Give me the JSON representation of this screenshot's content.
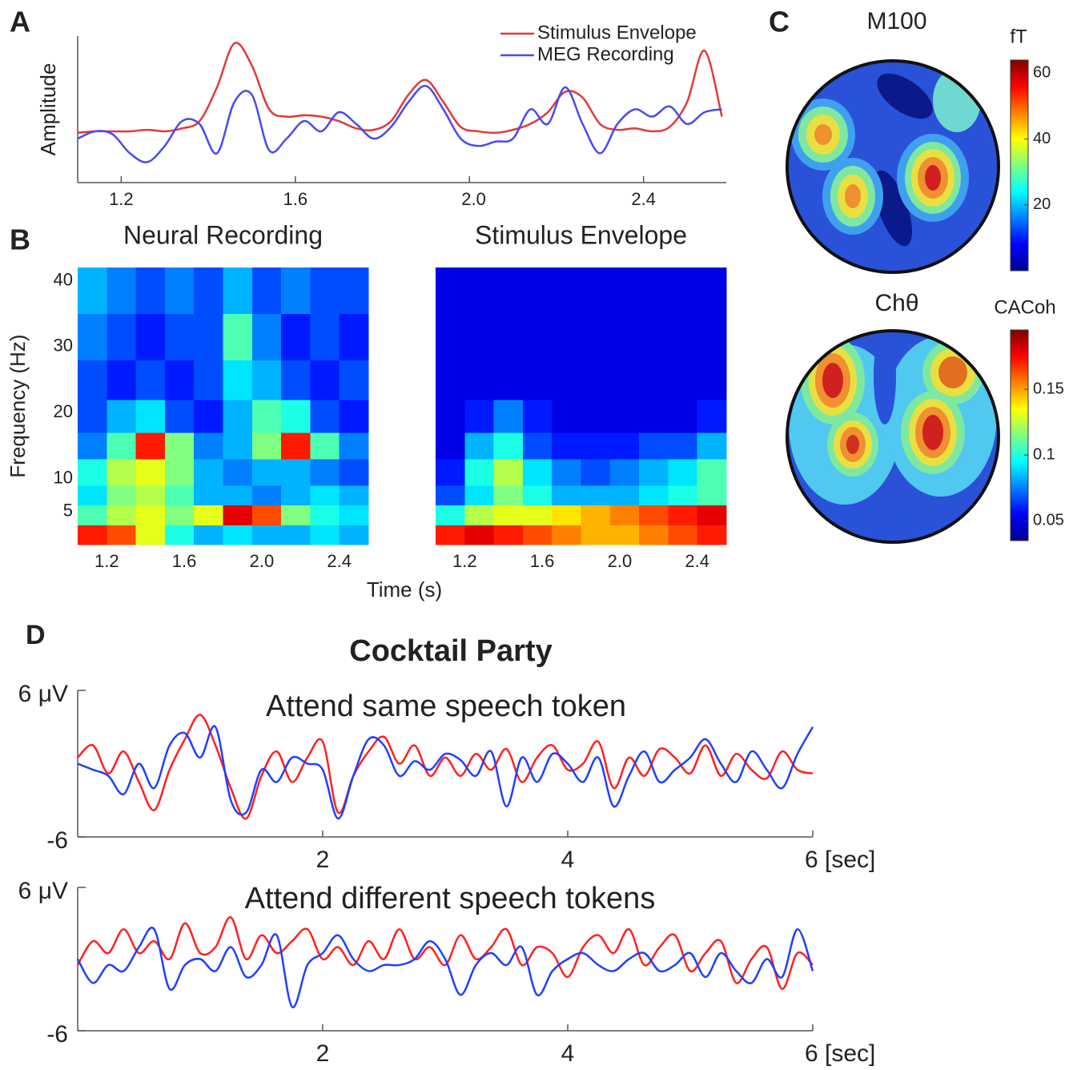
{
  "figure": {
    "panel_labels": [
      "A",
      "B",
      "C",
      "D"
    ],
    "suptitle": "Cocktail Party"
  },
  "chart_data": [
    {
      "type": "line",
      "ylabel": "Amplitude",
      "legend": "upper right",
      "xlim": [
        1.1,
        2.59
      ],
      "ylim": [
        0,
        1
      ],
      "xticks": [
        1.2,
        1.6,
        {
          "value": 2,
          "label": "2.0"
        },
        2.4
      ],
      "x": [
        1.1,
        1.14,
        1.18,
        1.22,
        1.26,
        1.3,
        1.34,
        1.38,
        1.42,
        1.46,
        1.5,
        1.54,
        1.58,
        1.62,
        1.66,
        1.7,
        1.74,
        1.78,
        1.82,
        1.86,
        1.9,
        1.94,
        1.98,
        2.02,
        2.06,
        2.1,
        2.14,
        2.18,
        2.22,
        2.26,
        2.3,
        2.34,
        2.38,
        2.42,
        2.46,
        2.5,
        2.54,
        2.58
      ],
      "series": [
        {
          "name": "Stimulus Envelope",
          "color": "#e03a3a",
          "values": [
            0.34,
            0.35,
            0.35,
            0.35,
            0.36,
            0.35,
            0.37,
            0.42,
            0.65,
            0.95,
            0.8,
            0.5,
            0.45,
            0.46,
            0.45,
            0.42,
            0.37,
            0.36,
            0.42,
            0.6,
            0.7,
            0.55,
            0.38,
            0.35,
            0.34,
            0.36,
            0.4,
            0.48,
            0.62,
            0.58,
            0.4,
            0.36,
            0.37,
            0.35,
            0.38,
            0.55,
            0.9,
            0.45
          ]
        },
        {
          "name": "MEG Recording",
          "color": "#4a4af0",
          "values": [
            0.3,
            0.35,
            0.33,
            0.2,
            0.14,
            0.25,
            0.42,
            0.4,
            0.2,
            0.55,
            0.6,
            0.22,
            0.3,
            0.42,
            0.35,
            0.48,
            0.4,
            0.3,
            0.38,
            0.55,
            0.66,
            0.5,
            0.3,
            0.25,
            0.28,
            0.3,
            0.5,
            0.4,
            0.65,
            0.4,
            0.2,
            0.4,
            0.5,
            0.45,
            0.52,
            0.4,
            0.48,
            0.5
          ]
        }
      ]
    },
    {
      "type": "heatmap",
      "title": "Neural Recording",
      "title_color": "#3a3af0",
      "xlabel": "Time (s)",
      "ylabel": "Frequency (Hz)",
      "colormap": "jet",
      "xlim": [
        1.05,
        2.55
      ],
      "ylim": [
        0,
        42
      ],
      "zlim": [
        0,
        1
      ],
      "xticks": [
        1.2,
        1.6,
        {
          "value": 2,
          "label": "2.0"
        },
        2.4
      ],
      "yticks": [
        5,
        10,
        20,
        30,
        40
      ],
      "x": [
        1.05,
        1.2,
        1.35,
        1.5,
        1.65,
        1.8,
        1.95,
        2.1,
        2.25,
        2.4,
        2.55
      ],
      "y": [
        0,
        3,
        6,
        9,
        13,
        17,
        22,
        28,
        35,
        42
      ],
      "z": [
        [
          0.85,
          0.8,
          0.6,
          0.4,
          0.3,
          0.35,
          0.3,
          0.3,
          0.35,
          0.3
        ],
        [
          0.45,
          0.55,
          0.6,
          0.5,
          0.6,
          0.9,
          0.8,
          0.5,
          0.4,
          0.35
        ],
        [
          0.35,
          0.5,
          0.55,
          0.45,
          0.3,
          0.3,
          0.25,
          0.3,
          0.35,
          0.3
        ],
        [
          0.4,
          0.55,
          0.6,
          0.5,
          0.3,
          0.25,
          0.3,
          0.3,
          0.25,
          0.2
        ],
        [
          0.25,
          0.45,
          0.85,
          0.5,
          0.25,
          0.3,
          0.5,
          0.85,
          0.45,
          0.25
        ],
        [
          0.2,
          0.3,
          0.35,
          0.2,
          0.15,
          0.3,
          0.45,
          0.4,
          0.2,
          0.15
        ],
        [
          0.2,
          0.15,
          0.2,
          0.15,
          0.2,
          0.35,
          0.3,
          0.2,
          0.15,
          0.2
        ],
        [
          0.25,
          0.2,
          0.15,
          0.2,
          0.2,
          0.45,
          0.25,
          0.15,
          0.2,
          0.15
        ],
        [
          0.3,
          0.25,
          0.2,
          0.25,
          0.2,
          0.3,
          0.2,
          0.25,
          0.2,
          0.2
        ]
      ]
    },
    {
      "type": "heatmap",
      "title": "Stimulus Envelope",
      "title_color": "#e03a3a",
      "colormap": "jet",
      "xlim": [
        1.05,
        2.55
      ],
      "ylim": [
        0,
        42
      ],
      "zlim": [
        0,
        1
      ],
      "xticks": [
        1.2,
        1.6,
        {
          "value": 2,
          "label": "2.0"
        },
        2.4
      ],
      "x": [
        1.05,
        1.2,
        1.35,
        1.5,
        1.65,
        1.8,
        1.95,
        2.1,
        2.25,
        2.4,
        2.55
      ],
      "y": [
        0,
        3,
        6,
        9,
        13,
        17,
        22,
        28,
        35,
        42
      ],
      "z": [
        [
          0.85,
          0.9,
          0.85,
          0.8,
          0.75,
          0.7,
          0.7,
          0.75,
          0.8,
          0.85
        ],
        [
          0.4,
          0.55,
          0.6,
          0.6,
          0.65,
          0.7,
          0.75,
          0.8,
          0.85,
          0.9
        ],
        [
          0.2,
          0.35,
          0.5,
          0.4,
          0.3,
          0.3,
          0.3,
          0.35,
          0.4,
          0.45
        ],
        [
          0.15,
          0.4,
          0.55,
          0.35,
          0.25,
          0.2,
          0.25,
          0.3,
          0.35,
          0.45
        ],
        [
          0.1,
          0.3,
          0.4,
          0.2,
          0.15,
          0.15,
          0.15,
          0.2,
          0.2,
          0.3
        ],
        [
          0.1,
          0.15,
          0.25,
          0.15,
          0.1,
          0.1,
          0.1,
          0.1,
          0.1,
          0.15
        ],
        [
          0.1,
          0.1,
          0.1,
          0.1,
          0.1,
          0.1,
          0.1,
          0.1,
          0.1,
          0.1
        ],
        [
          0.1,
          0.1,
          0.1,
          0.1,
          0.1,
          0.1,
          0.1,
          0.1,
          0.1,
          0.1
        ],
        [
          0.1,
          0.1,
          0.1,
          0.1,
          0.1,
          0.1,
          0.1,
          0.1,
          0.1,
          0.1
        ]
      ]
    },
    {
      "type": "topomap",
      "title": "M100",
      "clabel": "fT",
      "colormap": "jet",
      "clim": [
        0,
        64
      ],
      "cticks": [
        20,
        40,
        60
      ]
    },
    {
      "type": "topomap",
      "title": "Chθ",
      "clabel": "CACoh",
      "colormap": "jet",
      "clim": [
        0.035,
        0.195
      ],
      "cticks": [
        0.05,
        0.1,
        0.15
      ]
    },
    {
      "type": "line",
      "title": "Attend same speech token",
      "xlim": [
        0,
        6
      ],
      "ylim": [
        -6,
        6
      ],
      "xticks": [
        2,
        4,
        {
          "value": 6,
          "label": "6 [sec]"
        }
      ],
      "yticks": [
        {
          "value": 6,
          "label": "6 μV"
        },
        -6
      ],
      "x": [
        0,
        0.125,
        0.25,
        0.375,
        0.5,
        0.625,
        0.75,
        0.875,
        1,
        1.125,
        1.25,
        1.375,
        1.5,
        1.625,
        1.75,
        1.875,
        2,
        2.125,
        2.25,
        2.375,
        2.5,
        2.625,
        2.75,
        2.875,
        3,
        3.125,
        3.25,
        3.375,
        3.5,
        3.625,
        3.75,
        3.875,
        4,
        4.125,
        4.25,
        4.375,
        4.5,
        4.625,
        4.75,
        4.875,
        5,
        5.125,
        5.25,
        5.375,
        5.5,
        5.625,
        5.75,
        5.875,
        6
      ],
      "series": [
        {
          "color": "#ff2020",
          "values": [
            0.5,
            1.5,
            -0.8,
            1,
            -1.5,
            -3.8,
            -0.5,
            2,
            4,
            1.5,
            -2,
            -4.5,
            -1,
            1,
            -1.5,
            0.5,
            1.8,
            -4,
            -1,
            1,
            2.2,
            0,
            1.5,
            -1,
            0.5,
            -1,
            0.8,
            -0.5,
            1.2,
            -1.5,
            0.5,
            1.5,
            -0.5,
            0,
            1.8,
            -2,
            0.5,
            -1,
            1.2,
            0.5,
            -0.8,
            1.5,
            -1,
            0.8,
            -0.5,
            -1.2,
            1,
            -0.5,
            -0.8
          ]
        },
        {
          "color": "#2040ff",
          "values": [
            0,
            -0.5,
            -1,
            -2.5,
            0,
            -2,
            1.5,
            2.5,
            0.5,
            3,
            -3,
            -4,
            -0.5,
            -1.5,
            0.5,
            0,
            -0.5,
            -4.5,
            -1,
            2,
            1.5,
            -1,
            0.2,
            -0.5,
            0.8,
            0.3,
            -1,
            1,
            -3.5,
            0.5,
            -1.5,
            0.8,
            0,
            -1.5,
            0.5,
            -3.5,
            -1,
            1,
            -1.5,
            -0.5,
            0.5,
            2,
            0,
            -1.5,
            1,
            -0.5,
            -2,
            0.8,
            3
          ]
        }
      ]
    },
    {
      "type": "line",
      "title": "Attend different speech tokens",
      "xlim": [
        0,
        6
      ],
      "ylim": [
        -6,
        6
      ],
      "xticks": [
        2,
        4,
        {
          "value": 6,
          "label": "6 [sec]"
        }
      ],
      "yticks": [
        {
          "value": 6,
          "label": "6 μV"
        },
        -6
      ],
      "x": [
        0,
        0.125,
        0.25,
        0.375,
        0.5,
        0.625,
        0.75,
        0.875,
        1,
        1.125,
        1.25,
        1.375,
        1.5,
        1.625,
        1.75,
        1.875,
        2,
        2.125,
        2.25,
        2.375,
        2.5,
        2.625,
        2.75,
        2.875,
        3,
        3.125,
        3.25,
        3.375,
        3.5,
        3.625,
        3.75,
        3.875,
        4,
        4.125,
        4.25,
        4.375,
        4.5,
        4.625,
        4.75,
        4.875,
        5,
        5.125,
        5.25,
        5.375,
        5.5,
        5.625,
        5.75,
        5.875,
        6
      ],
      "series": [
        {
          "color": "#ff2020",
          "values": [
            -0.5,
            1.5,
            0.5,
            2.5,
            0.5,
            1.5,
            0,
            3,
            0.5,
            1,
            3.5,
            0,
            2,
            0.5,
            1.5,
            2.5,
            0,
            1,
            -0.5,
            1.5,
            0,
            2.5,
            0,
            1,
            -0.5,
            2,
            0,
            1,
            2.5,
            -0.5,
            1,
            0.5,
            -1.5,
            1,
            2,
            0.5,
            2.5,
            -0.5,
            1,
            2,
            -1,
            0.5,
            1.5,
            -2,
            0,
            1,
            -2.5,
            0.5,
            -0.5
          ]
        },
        {
          "color": "#2040ff",
          "values": [
            0,
            -2,
            -0.5,
            -1,
            1,
            2.5,
            -2.5,
            -0.5,
            0,
            -1,
            1,
            -1.5,
            -0.5,
            2,
            -4,
            -0.5,
            0.5,
            2,
            0,
            -1,
            -0.5,
            -0.5,
            0,
            1.5,
            0,
            -3,
            -0.5,
            0.5,
            -0.5,
            1,
            -3,
            -1,
            0,
            0.5,
            -0.5,
            -1,
            0,
            0.5,
            -1,
            -0.5,
            0.5,
            -1.5,
            0.5,
            -1,
            -2,
            0,
            -1.5,
            2.5,
            -1
          ]
        }
      ]
    }
  ]
}
